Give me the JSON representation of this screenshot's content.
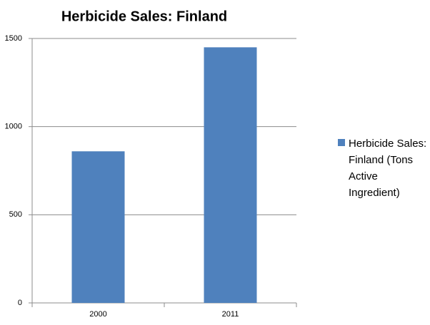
{
  "chart_data": {
    "type": "bar",
    "title": "Herbicide Sales: Finland",
    "categories": [
      "2000",
      "2011"
    ],
    "series": [
      {
        "name": "Herbicide Sales: Finland (Tons Active Ingredient)",
        "color": "#4f81bd",
        "values": [
          860,
          1450
        ]
      }
    ],
    "ylim": [
      0,
      1500
    ],
    "yticks": [
      0,
      500,
      1000,
      1500
    ],
    "grid": true,
    "legend": "right"
  }
}
